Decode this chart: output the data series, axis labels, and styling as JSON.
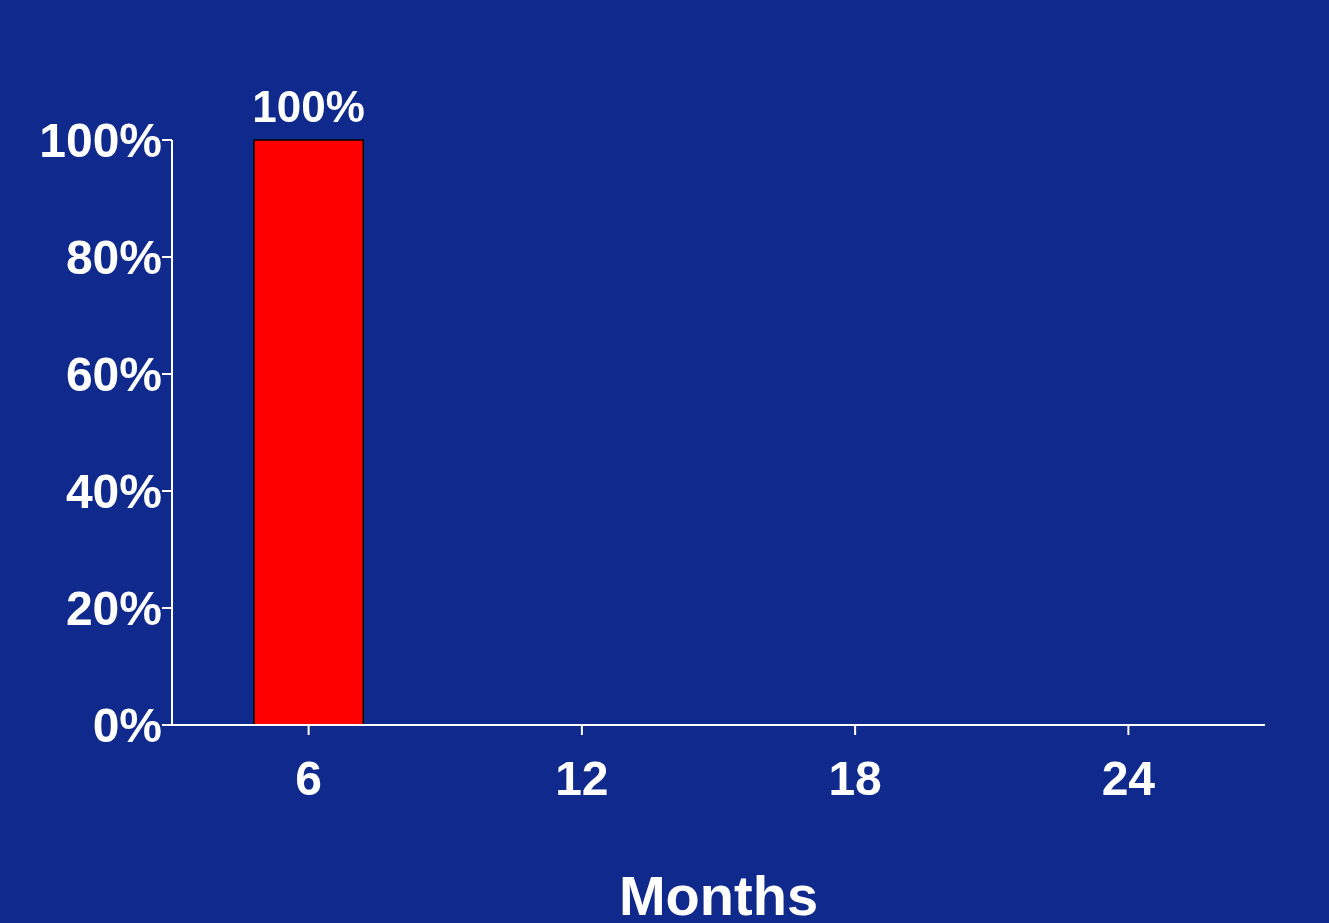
{
  "chart_data": {
    "type": "bar",
    "xlabel": "Months",
    "categories": [
      "6",
      "12",
      "18",
      "24"
    ],
    "values": [
      100,
      null,
      null,
      null
    ],
    "color": "#ff0000",
    "value_labels": [
      "100%",
      null,
      null,
      null
    ],
    "ylim": [
      0,
      100
    ],
    "yticks": [
      {
        "value": 0,
        "label": "0%"
      },
      {
        "value": 20,
        "label": "20%"
      },
      {
        "value": 40,
        "label": "40%"
      },
      {
        "value": 60,
        "label": "60%"
      },
      {
        "value": 80,
        "label": "80%"
      },
      {
        "value": 100,
        "label": "100%"
      }
    ],
    "grid": false
  }
}
